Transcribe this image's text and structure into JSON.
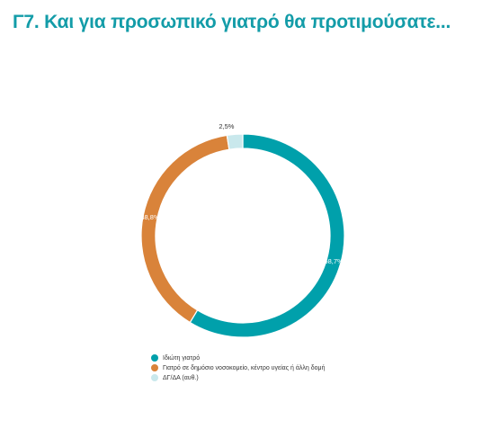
{
  "title": "Γ7. Και για προσωπικό γιατρό θα προτιμούσατε...",
  "chart_data": {
    "type": "pie",
    "variant": "donut",
    "title": "Γ7. Και για προσωπικό γιατρό θα προτιμούσατε...",
    "slices": [
      {
        "name": "Ιδιώτη γιατρό",
        "value": 58.7,
        "label": "58,7%",
        "color": "#00a0ab",
        "label_color": "#ffffff"
      },
      {
        "name": "Γιατρό σε δημόσιο νοσοκομείο, κέντρο υγείας ή άλλη δομή",
        "value": 38.8,
        "label": "38,8%",
        "color": "#d9833a",
        "label_color": "#ffffff"
      },
      {
        "name": "ΔΓ/ΔΑ (αυθ.)",
        "value": 2.5,
        "label": "2,5%",
        "color": "#c9e8ec",
        "label_color": "#333333"
      }
    ],
    "legend_position": "bottom"
  }
}
